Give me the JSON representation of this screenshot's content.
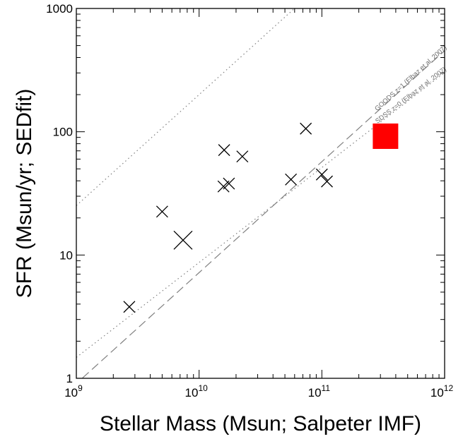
{
  "chart_data": {
    "type": "scatter",
    "title": "",
    "xlabel": "Stellar Mass (Msun; Salpeter IMF)",
    "ylabel": "SFR (Msun/yr; SEDfit)",
    "xscale": "log",
    "yscale": "log",
    "xlim": [
      1000000000.0,
      1000000000000.0
    ],
    "ylim": [
      1,
      1000
    ],
    "x_ticks": [
      {
        "value": 1000000000.0,
        "base": "10",
        "exp": "9"
      },
      {
        "value": 10000000000.0,
        "base": "10",
        "exp": "10"
      },
      {
        "value": 100000000000.0,
        "base": "10",
        "exp": "11"
      },
      {
        "value": 1000000000000.0,
        "base": "10",
        "exp": "12"
      }
    ],
    "y_ticks": [
      {
        "value": 1,
        "label": "1"
      },
      {
        "value": 10,
        "label": "10"
      },
      {
        "value": 100,
        "label": "100"
      },
      {
        "value": 1000,
        "label": "1000"
      }
    ],
    "grid": false,
    "points": [
      {
        "x": 2700000000.0,
        "y": 3.8,
        "marker": "x",
        "size": "normal"
      },
      {
        "x": 5000000000.0,
        "y": 22.5,
        "marker": "x",
        "size": "normal"
      },
      {
        "x": 7400000000.0,
        "y": 13.2,
        "marker": "x",
        "size": "large"
      },
      {
        "x": 16000000000.0,
        "y": 71,
        "marker": "x",
        "size": "normal"
      },
      {
        "x": 15800000000.0,
        "y": 36,
        "marker": "x",
        "size": "normal"
      },
      {
        "x": 17500000000.0,
        "y": 38,
        "marker": "x",
        "size": "normal"
      },
      {
        "x": 22500000000.0,
        "y": 63,
        "marker": "x",
        "size": "normal"
      },
      {
        "x": 56000000000.0,
        "y": 41,
        "marker": "x",
        "size": "normal"
      },
      {
        "x": 74000000000.0,
        "y": 106,
        "marker": "x",
        "size": "normal"
      },
      {
        "x": 100000000000.0,
        "y": 45,
        "marker": "x",
        "size": "normal"
      },
      {
        "x": 110000000000.0,
        "y": 39.5,
        "marker": "x",
        "size": "normal"
      },
      {
        "x": 330000000000.0,
        "y": 92,
        "marker": "square",
        "size": "large",
        "color": "#ff0000"
      }
    ],
    "relations": [
      {
        "label": "GOODS z=2 (Daddi et al. 2007)",
        "style": "dotted",
        "color": "#808080",
        "coef": 200,
        "slope": 0.9
      },
      {
        "label": "GOODS z=1 (Elbaz et al. 2007)",
        "style": "dashed",
        "color": "#808080",
        "coef": 7.2,
        "slope": 0.9
      },
      {
        "label": "SDSS z=0 (Elbaz et al. 2007)",
        "style": "dotted",
        "color": "#808080",
        "coef": 8.7,
        "slope": 0.77
      }
    ]
  }
}
